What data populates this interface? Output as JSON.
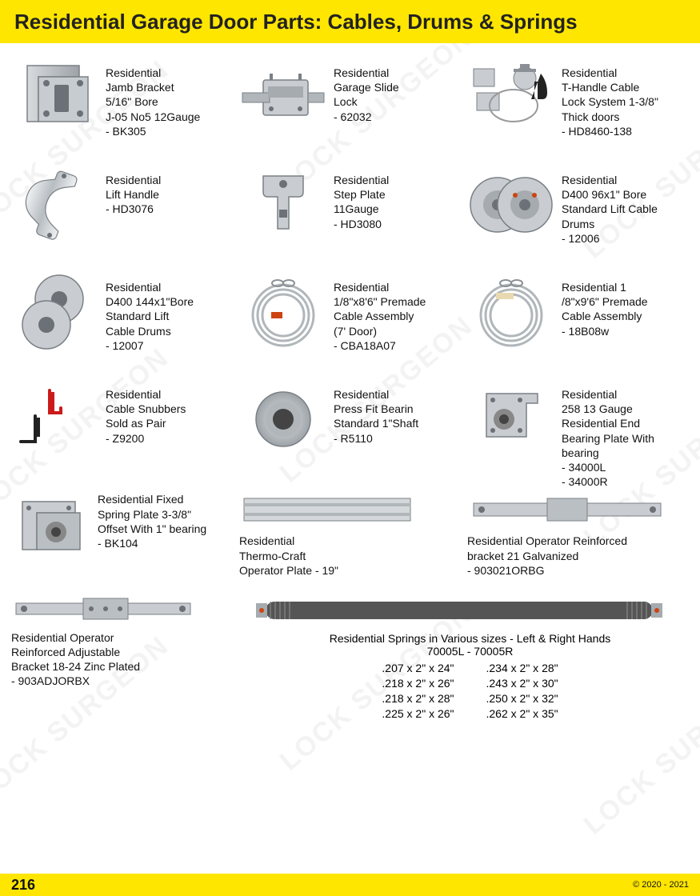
{
  "colors": {
    "accent": "#ffe600",
    "text": "#111111",
    "metal": "#bfc4c8",
    "metalDark": "#8a9095",
    "red": "#cc1a1a",
    "black": "#222222"
  },
  "header": {
    "title": "Residential Garage Door Parts: Cables, Drums & Springs"
  },
  "watermark": "LOCK SURGEON",
  "items": [
    {
      "name": "jamb-bracket",
      "lines": [
        "Residential",
        "Jamb Bracket",
        "5/16\" Bore",
        "J-05 No5 12Gauge",
        "- BK305"
      ]
    },
    {
      "name": "slide-lock",
      "lines": [
        "Residential",
        "Garage Slide",
        "Lock",
        "- 62032"
      ]
    },
    {
      "name": "t-handle-lock",
      "lines": [
        "Residential",
        "T-Handle Cable",
        "Lock System 1-3/8\"",
        "Thick doors",
        "- HD8460-138"
      ]
    },
    {
      "name": "lift-handle",
      "lines": [
        "Residential",
        "Lift Handle",
        "- HD3076"
      ]
    },
    {
      "name": "step-plate",
      "lines": [
        "Residential",
        "Step Plate",
        "11Gauge",
        "- HD3080"
      ]
    },
    {
      "name": "cable-drums-96",
      "lines": [
        "Residential",
        "D400 96x1\" Bore",
        "Standard Lift Cable",
        "Drums",
        "- 12006"
      ]
    },
    {
      "name": "cable-drums-144",
      "lines": [
        "Residential",
        "D400 144x1\"Bore",
        "Standard Lift",
        "Cable Drums",
        "- 12007"
      ]
    },
    {
      "name": "cable-assembly-7ft",
      "lines": [
        "Residential",
        "1/8\"x8'6\" Premade",
        "Cable Assembly",
        "(7' Door)",
        "- CBA18A07"
      ]
    },
    {
      "name": "cable-assembly-9ft",
      "lines": [
        "Residential 1",
        "/8\"x9'6\" Premade",
        "Cable Assembly",
        "- 18B08w"
      ]
    },
    {
      "name": "cable-snubbers",
      "lines": [
        "Residential",
        "Cable Snubbers",
        "Sold as Pair",
        "- Z9200"
      ]
    },
    {
      "name": "press-fit-bearing",
      "lines": [
        "Residential",
        "Press Fit Bearin",
        "Standard 1\"Shaft",
        "- R5110"
      ]
    },
    {
      "name": "end-bearing-plate",
      "lines": [
        "Residential",
        "258 13 Gauge",
        "Residential End",
        "Bearing Plate With",
        "bearing",
        "- 34000L",
        "- 34000R"
      ]
    }
  ],
  "row5": [
    {
      "name": "fixed-spring-plate",
      "lines": [
        "Residential Fixed",
        "Spring Plate 3-3/8\"",
        "Offset With 1\" bearing",
        "- BK104"
      ]
    },
    {
      "name": "thermo-craft-plate",
      "lines": [
        "Residential",
        "Thermo-Craft",
        "Operator Plate - 19\""
      ]
    },
    {
      "name": "operator-bracket-21",
      "lines": [
        "Residential Operator Reinforced",
        "bracket 21 Galvanized",
        "- 903021ORBG"
      ]
    }
  ],
  "row6": {
    "left": {
      "name": "operator-bracket-adj",
      "lines": [
        "Residential Operator",
        "Reinforced Adjustable",
        "Bracket 18-24 Zinc Plated",
        "- 903ADJORBX"
      ]
    },
    "right": {
      "name": "springs",
      "title": "Residential Springs in Various sizes - Left & Right Hands",
      "subtitle": "70005L  -  70005R",
      "col1": [
        ".207 x 2\" x 24\"",
        ".218 x 2\" x 26\"",
        ".218 x 2\" x 28\"",
        ".225 x 2\" x 26\""
      ],
      "col2": [
        ".234 x 2\" x 28\"",
        ".243 x 2\" x 30\"",
        ".250 x 2\" x 32\"",
        ".262 x 2\" x 35\""
      ]
    }
  },
  "footer": {
    "page": "216",
    "copyright": "© 2020 - 2021"
  }
}
